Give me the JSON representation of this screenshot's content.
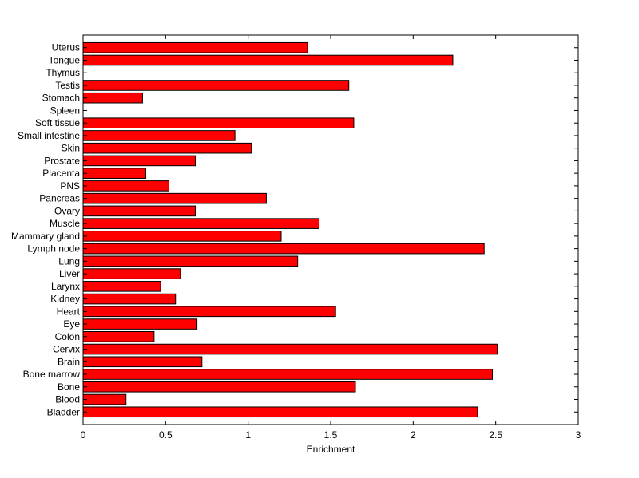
{
  "chart_data": {
    "type": "bar",
    "orientation": "horizontal",
    "title": "",
    "xlabel": "Enrichment",
    "ylabel": "",
    "xlim": [
      0,
      3
    ],
    "xticks": [
      "0",
      "0.5",
      "1",
      "1.5",
      "2",
      "2.5",
      "3"
    ],
    "grid": false,
    "bar_color": "#ff0000",
    "categories": [
      "Bladder",
      "Blood",
      "Bone",
      "Bone marrow",
      "Brain",
      "Cervix",
      "Colon",
      "Eye",
      "Heart",
      "Kidney",
      "Larynx",
      "Liver",
      "Lung",
      "Lymph node",
      "Mammary gland",
      "Muscle",
      "Ovary",
      "Pancreas",
      "PNS",
      "Placenta",
      "Prostate",
      "Skin",
      "Small intestine",
      "Soft tissue",
      "Spleen",
      "Stomach",
      "Testis",
      "Thymus",
      "Tongue",
      "Uterus"
    ],
    "values": [
      2.39,
      0.26,
      1.65,
      2.48,
      0.72,
      2.51,
      0.43,
      0.69,
      1.53,
      0.56,
      0.47,
      0.59,
      1.3,
      2.43,
      1.2,
      1.43,
      0.68,
      1.11,
      0.52,
      0.38,
      0.68,
      1.02,
      0.92,
      1.64,
      0,
      0.36,
      1.61,
      0,
      2.24,
      1.36
    ]
  }
}
